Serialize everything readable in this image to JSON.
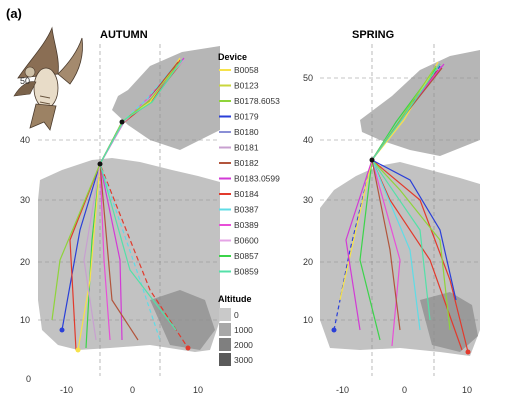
{
  "figure": {
    "panel_label": "(a)",
    "maps": [
      {
        "id": "autumn",
        "title": "AUTUMN"
      },
      {
        "id": "spring",
        "title": "SPRING"
      }
    ],
    "legend": {
      "title": "Device",
      "entries": [
        {
          "label": "B0058",
          "color": "#f6e24a"
        },
        {
          "label": "B0123",
          "color": "#c9d63c"
        },
        {
          "label": "B0178.6053",
          "color": "#8fd43a"
        },
        {
          "label": "B0179",
          "color": "#2a3fd8"
        },
        {
          "label": "B0180",
          "color": "#8a8fd6"
        },
        {
          "label": "B0181",
          "color": "#c8a0d0"
        },
        {
          "label": "B0182",
          "color": "#b2553c"
        },
        {
          "label": "B0183.0599",
          "color": "#d23ad6"
        },
        {
          "label": "B0184",
          "color": "#e23a2c"
        },
        {
          "label": "B0387",
          "color": "#5fdce6"
        },
        {
          "label": "B0389",
          "color": "#e84fd8"
        },
        {
          "label": "B0600",
          "color": "#e5a4e6"
        },
        {
          "label": "B0857",
          "color": "#3bd44a"
        },
        {
          "label": "B0859",
          "color": "#54e0a8"
        }
      ]
    },
    "altitude_legend": {
      "title": "Altitude",
      "levels": [
        "0",
        "1000",
        "2000",
        "3000"
      ],
      "colors": [
        "#c9c9c9",
        "#a8a8a8",
        "#7f7f7f",
        "#5a5a5a"
      ]
    },
    "axes": {
      "autumn_y_ticks": [
        "50",
        "40",
        "30",
        "20",
        "10",
        "0"
      ],
      "spring_y_ticks": [
        "50",
        "40",
        "30",
        "20",
        "10"
      ],
      "x_ticks": [
        "-10",
        "0",
        "10"
      ]
    },
    "colors": {
      "land": "#bdbdbd",
      "dark_land": "#8c8c8c",
      "grid": "#9a9a9a"
    }
  }
}
